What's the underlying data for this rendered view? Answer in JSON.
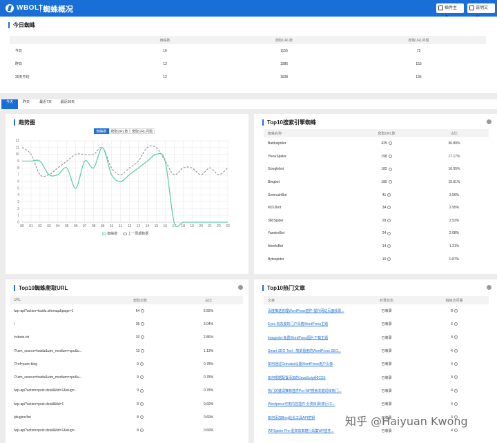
{
  "header": {
    "brand": "WBOLT",
    "page_title": "蜘蛛概况",
    "btn_home": "插件主页",
    "btn_docs": "说明文档"
  },
  "today": {
    "title": "今日蜘蛛",
    "columns": [
      "蜘蛛数",
      "爬取URL数",
      "爬取URL问题"
    ],
    "rows": [
      {
        "label": "今日",
        "spiders": "16",
        "urls": "1155",
        "issues": "73"
      },
      {
        "label": "昨日",
        "spiders": "13",
        "urls": "1986",
        "issues": "153"
      },
      {
        "label": "30天平均",
        "spiders": "12",
        "urls": "1628",
        "issues": "136"
      }
    ]
  },
  "tabs": [
    "今天",
    "昨天",
    "最近7天",
    "最近30天"
  ],
  "trend": {
    "title": "趋势图",
    "segments": [
      "蜘蛛数",
      "爬取URL数",
      "爬取URL问题"
    ],
    "legend": [
      "蜘蛛数",
      "上一周期数据"
    ]
  },
  "chart_data": {
    "type": "line",
    "x": [
      "00",
      "01",
      "02",
      "03",
      "04",
      "05",
      "06",
      "07",
      "08",
      "09",
      "10",
      "11",
      "12",
      "13",
      "14",
      "15",
      "16",
      "17",
      "18",
      "19",
      "20",
      "21",
      "22",
      "23"
    ],
    "ylim": [
      0,
      12
    ],
    "yticks": [
      "0",
      "1",
      "2",
      "3",
      "4",
      "5",
      "6",
      "7",
      "8",
      "9",
      "10",
      "11",
      "12"
    ],
    "series": [
      {
        "name": "蜘蛛数",
        "color": "#5fcfa9",
        "dashed": false,
        "values": [
          9,
          9,
          9,
          7,
          7,
          8,
          5,
          9,
          8,
          11,
          7,
          6,
          7,
          8,
          9,
          10,
          9,
          0,
          0,
          0,
          0,
          0,
          0,
          0
        ]
      },
      {
        "name": "上一周期数据",
        "color": "#8f8f8f",
        "dashed": true,
        "values": [
          11,
          10,
          7,
          7,
          8,
          9,
          10,
          10,
          10,
          11,
          8,
          7,
          8,
          9,
          11,
          11,
          9,
          7,
          8,
          8,
          7,
          8,
          7,
          8
        ]
      }
    ],
    "grid": true,
    "legend_position": "bottom"
  },
  "top_engines": {
    "title": "Top10搜索引擎蜘蛛",
    "columns": [
      "蜘蛛名称",
      "爬取URL数",
      "占比"
    ],
    "rows": [
      {
        "name": "Baiduspider",
        "count": "425",
        "pct": "36.80%"
      },
      {
        "name": "YisouSpider",
        "count": "198",
        "pct": "17.17%"
      },
      {
        "name": "Googlebot",
        "count": "185",
        "pct": "16.05%"
      },
      {
        "name": "Bingbot",
        "count": "180",
        "pct": "15.61%"
      },
      {
        "name": "SemrushBot",
        "count": "41",
        "pct": "3.56%"
      },
      {
        "name": "MJ12bot",
        "count": "34",
        "pct": "2.95%"
      },
      {
        "name": "360Spider",
        "count": "29",
        "pct": "2.52%"
      },
      {
        "name": "YandexBot",
        "count": "24",
        "pct": "2.08%"
      },
      {
        "name": "AhrefsBot",
        "count": "14",
        "pct": "1.21%"
      },
      {
        "name": "Bytespider",
        "count": "10",
        "pct": "0.87%"
      }
    ]
  },
  "top_urls": {
    "title": "Top10蜘蛛爬取URL",
    "columns": [
      "URL",
      "爬取次数",
      "占比"
    ],
    "rows": [
      {
        "url": "/wp-api?action=baidu.sitemap&page=1",
        "count": "64",
        "pct": "5.55%"
      },
      {
        "url": "/",
        "count": "35",
        "pct": "3.04%"
      },
      {
        "url": "/robots.txt",
        "count": "33",
        "pct": "2.86%"
      },
      {
        "url": "/?utm_source=baidu&utm_medium=cpc&u...",
        "count": "13",
        "pct": "1.13%"
      },
      {
        "url": "/?ref=pure-blog",
        "count": "9",
        "pct": "0.78%"
      },
      {
        "url": "/?utm_source=baidu&utm_medium=cpc&u...",
        "count": "9",
        "pct": "0.78%"
      },
      {
        "url": "/wp-api?action=post.detail&tid=1&slug=...",
        "count": "9",
        "pct": "0.78%"
      },
      {
        "url": "/wp-api?action=post.detail&tid=1",
        "count": "8",
        "pct": "0.69%"
      },
      {
        "url": "/plugins/list",
        "count": "8",
        "pct": "0.69%"
      },
      {
        "url": "/wp-api?action=post.detail&tid=1&slug=...",
        "count": "8",
        "pct": "0.69%"
      }
    ]
  },
  "top_posts": {
    "title": "Top10热门文章",
    "columns": [
      "文章",
      "收录状态",
      "蜘蛛访问量"
    ],
    "rows": [
      {
        "title": "百度推送管理WordPress插件-提升网站页面收录...",
        "status": "已收录",
        "visits": "8"
      },
      {
        "title": "Eyes 有态度的门户风格WordPress主题",
        "status": "已收录",
        "visits": "6"
      },
      {
        "title": "Imagedot-免费WordPress图片下载主题",
        "status": "已收录",
        "visits": "4"
      },
      {
        "title": "Smart SEO Tool - 简单易用的WordPress SEO...",
        "status": "已收录",
        "visits": "4"
      },
      {
        "title": "如何通过Gravatar设置WordPress用户头像",
        "status": "已收录",
        "visits": "4"
      },
      {
        "title": "如何根据配置添加的JavaScript和CSS",
        "status": "已收录",
        "visits": "4"
      },
      {
        "title": "热门关键词推荐插件Pro-WP搜索关键词和热门...",
        "status": "已收录",
        "visits": "4"
      },
      {
        "title": "Wordpress可用内容插件-分类目录/排行/工...",
        "status": "已收录",
        "visits": "4"
      },
      {
        "title": "如何添加Bing站长工具API密钥",
        "status": "已收录",
        "visits": "4"
      },
      {
        "title": "WPSpider Pro-更高效率爬行采集WP插件...",
        "status": "已收录",
        "visits": "4"
      }
    ]
  },
  "watermark": "知乎 @Haiyuan Kwong"
}
